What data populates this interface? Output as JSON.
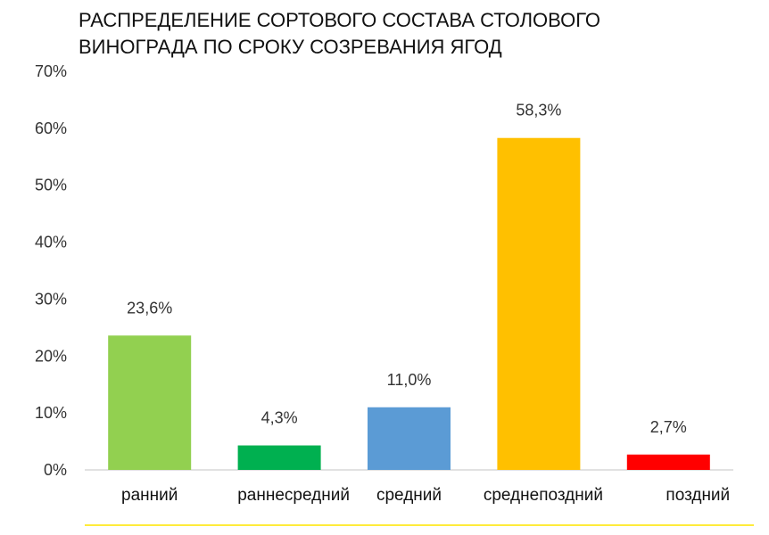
{
  "title_lines": [
    "РАСПРЕДЕЛЕНИЕ СОРТОВОГО СОСТАВА СТОЛОВОГО",
    "ВИНОГРАДА ПО СРОКУ СОЗРЕВАНИЯ ЯГОД"
  ],
  "colors": {
    "axis": "#d9d9d9",
    "separator": "#ffeb3b"
  },
  "chart_data": {
    "type": "bar",
    "title": "РАСПРЕДЕЛЕНИЕ СОРТОВОГО СОСТАВА СТОЛОВОГО ВИНОГРАДА ПО СРОКУ СОЗРЕВАНИЯ ЯГОД",
    "categories": [
      "ранний",
      "раннесредний",
      "средний",
      "среднепоздний",
      "поздний"
    ],
    "values": [
      23.6,
      4.3,
      11.0,
      58.3,
      2.7
    ],
    "data_labels": [
      "23,6%",
      "4,3%",
      "11,0%",
      "58,3%",
      "2,7%"
    ],
    "bar_colors": [
      "#92d050",
      "#00b050",
      "#5b9bd5",
      "#ffc000",
      "#ff0000"
    ],
    "ylim": [
      0,
      70
    ],
    "yticks": [
      0,
      10,
      20,
      30,
      40,
      50,
      60,
      70
    ],
    "ytick_labels": [
      "0%",
      "10%",
      "20%",
      "30%",
      "40%",
      "50%",
      "60%",
      "70%"
    ],
    "grid": false,
    "legend": "none"
  }
}
